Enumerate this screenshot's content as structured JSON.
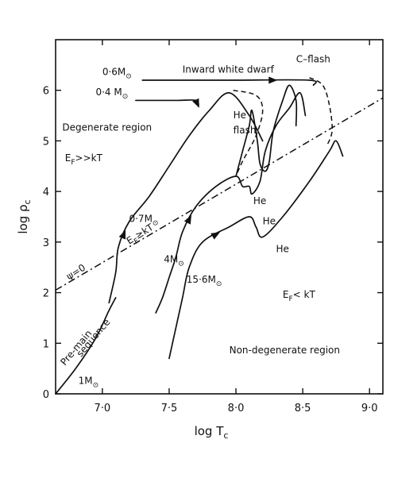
{
  "chart_data": {
    "type": "line",
    "xlabel_main": "log T",
    "xlabel_sub": "c",
    "ylabel_main": "log ρ",
    "ylabel_sub": "c",
    "xlim": [
      6.65,
      9.1
    ],
    "ylim": [
      0,
      7
    ],
    "x_ticks": [
      {
        "v": 7.0,
        "label": "7·0"
      },
      {
        "v": 7.5,
        "label": "7·5"
      },
      {
        "v": 8.0,
        "label": "8·0"
      },
      {
        "v": 8.5,
        "label": "8·5"
      },
      {
        "v": 9.0,
        "label": "9·0"
      }
    ],
    "y_ticks": [
      {
        "v": 0,
        "label": "0"
      },
      {
        "v": 1,
        "label": "1"
      },
      {
        "v": 2,
        "label": "2"
      },
      {
        "v": 3,
        "label": "3"
      },
      {
        "v": 4,
        "label": "4"
      },
      {
        "v": 5,
        "label": "5"
      },
      {
        "v": 6,
        "label": "6"
      }
    ],
    "tracks": [
      {
        "id": "track-1msun",
        "style": "solid",
        "arrow_at": null,
        "points": [
          [
            6.65,
            0.0
          ],
          [
            6.8,
            0.5
          ],
          [
            6.95,
            1.1
          ],
          [
            7.05,
            1.65
          ],
          [
            7.1,
            1.9
          ]
        ]
      },
      {
        "id": "track-0-7msun",
        "style": "solid",
        "arrow_at": 2,
        "points": [
          [
            7.05,
            1.8
          ],
          [
            7.1,
            2.4
          ],
          [
            7.12,
            2.9
          ],
          [
            7.2,
            3.4
          ],
          [
            7.35,
            3.9
          ],
          [
            7.5,
            4.5
          ],
          [
            7.65,
            5.1
          ],
          [
            7.8,
            5.6
          ],
          [
            7.95,
            5.95
          ],
          [
            8.1,
            5.5
          ],
          [
            8.2,
            5.0
          ]
        ]
      },
      {
        "id": "track-0-4msun",
        "style": "solid",
        "arrow_at": 2,
        "points": [
          [
            7.25,
            5.8
          ],
          [
            7.55,
            5.8
          ],
          [
            7.7,
            5.8
          ],
          [
            7.72,
            5.68
          ]
        ]
      },
      {
        "id": "track-0-6msun",
        "style": "solid",
        "arrow_at": 2,
        "points": [
          [
            7.3,
            6.2
          ],
          [
            7.6,
            6.2
          ],
          [
            8.0,
            6.2
          ],
          [
            8.55,
            6.2
          ],
          [
            8.58,
            6.1
          ]
        ]
      },
      {
        "id": "track-4msun",
        "style": "solid",
        "arrow_at": 4,
        "points": [
          [
            7.4,
            1.6
          ],
          [
            7.45,
            1.9
          ],
          [
            7.5,
            2.3
          ],
          [
            7.55,
            2.7
          ],
          [
            7.6,
            3.2
          ],
          [
            7.7,
            3.7
          ],
          [
            7.85,
            4.1
          ],
          [
            8.0,
            4.3
          ],
          [
            8.05,
            4.1
          ],
          [
            8.1,
            4.1
          ],
          [
            8.12,
            3.95
          ],
          [
            8.18,
            4.2
          ],
          [
            8.22,
            4.8
          ],
          [
            8.3,
            5.3
          ],
          [
            8.4,
            5.65
          ],
          [
            8.48,
            5.95
          ],
          [
            8.52,
            5.5
          ]
        ]
      },
      {
        "id": "track-15-6msun",
        "style": "solid",
        "arrow_at": 4,
        "points": [
          [
            7.5,
            0.7
          ],
          [
            7.55,
            1.3
          ],
          [
            7.6,
            1.9
          ],
          [
            7.65,
            2.5
          ],
          [
            7.75,
            3.0
          ],
          [
            7.95,
            3.3
          ],
          [
            8.1,
            3.5
          ],
          [
            8.15,
            3.3
          ],
          [
            8.2,
            3.1
          ],
          [
            8.35,
            3.5
          ],
          [
            8.55,
            4.2
          ],
          [
            8.7,
            4.8
          ],
          [
            8.75,
            5.0
          ],
          [
            8.8,
            4.7
          ]
        ]
      },
      {
        "id": "track-upper-he",
        "style": "solid",
        "arrow_at": null,
        "points": [
          [
            8.0,
            4.3
          ],
          [
            8.05,
            4.8
          ],
          [
            8.1,
            5.3
          ],
          [
            8.12,
            5.6
          ],
          [
            8.16,
            5.0
          ],
          [
            8.18,
            4.55
          ],
          [
            8.22,
            4.4
          ],
          [
            8.25,
            4.6
          ],
          [
            8.28,
            5.2
          ],
          [
            8.35,
            5.8
          ],
          [
            8.4,
            6.1
          ],
          [
            8.45,
            5.8
          ],
          [
            8.45,
            5.3
          ]
        ]
      },
      {
        "id": "he-flash-dashed",
        "style": "dashed",
        "arrow_at": null,
        "points": [
          [
            7.98,
            6.0
          ],
          [
            8.15,
            5.9
          ],
          [
            8.2,
            5.6
          ],
          [
            8.15,
            5.1
          ],
          [
            8.05,
            4.6
          ],
          [
            8.0,
            4.3
          ]
        ]
      },
      {
        "id": "c-flash-dashed",
        "style": "dashed",
        "arrow_at": null,
        "points": [
          [
            8.55,
            6.25
          ],
          [
            8.65,
            6.1
          ],
          [
            8.7,
            5.7
          ],
          [
            8.72,
            5.2
          ],
          [
            8.68,
            4.9
          ]
        ]
      },
      {
        "id": "degeneracy-boundary",
        "style": "dashdot",
        "arrow_at": null,
        "points": [
          [
            6.65,
            2.05
          ],
          [
            9.1,
            5.85
          ]
        ]
      }
    ],
    "annotations": [
      {
        "id": "label-0-6msun",
        "x": 7.0,
        "y": 6.3,
        "main": "0·6M",
        "sub": "⊙"
      },
      {
        "id": "label-inward-white-dwarf",
        "x": 7.6,
        "y": 6.35,
        "main": "Inward white dwarf",
        "sub": ""
      },
      {
        "id": "label-c-flash",
        "x": 8.45,
        "y": 6.55,
        "main": "C–flash",
        "sub": ""
      },
      {
        "id": "label-0-4msun",
        "x": 6.95,
        "y": 5.9,
        "main": "0·4 M",
        "sub": "⊙"
      },
      {
        "id": "label-he-flash-1",
        "x": 7.98,
        "y": 5.45,
        "main": "He",
        "sub": ""
      },
      {
        "id": "label-he-flash-2",
        "x": 7.98,
        "y": 5.15,
        "main": "flash",
        "sub": ""
      },
      {
        "id": "label-degenerate-region",
        "x": 6.7,
        "y": 5.2,
        "main": "Degenerate region",
        "sub": ""
      },
      {
        "id": "label-ef-gg-kt",
        "x": 6.72,
        "y": 4.6,
        "main": "E",
        "sub": "F",
        "tail": ">>kT"
      },
      {
        "id": "label-0-7msun",
        "x": 7.2,
        "y": 3.4,
        "main": "0·7M",
        "sub": "⊙"
      },
      {
        "id": "label-ef-ge-kt",
        "x": 7.2,
        "y": 2.95,
        "main": "E",
        "sub": "F",
        "tail": "≥kT",
        "rotate": -32
      },
      {
        "id": "label-4msun",
        "x": 7.46,
        "y": 2.6,
        "main": "4M",
        "sub": "⊙"
      },
      {
        "id": "label-he-a",
        "x": 8.13,
        "y": 3.75,
        "main": "He",
        "sub": ""
      },
      {
        "id": "label-he-b",
        "x": 8.2,
        "y": 3.35,
        "main": "He",
        "sub": ""
      },
      {
        "id": "label-he-c",
        "x": 8.3,
        "y": 2.8,
        "main": "He",
        "sub": ""
      },
      {
        "id": "label-psi-0",
        "x": 6.75,
        "y": 2.25,
        "main": "ψ=0",
        "sub": "",
        "rotate": -32
      },
      {
        "id": "label-15-6msun",
        "x": 7.63,
        "y": 2.2,
        "main": "15·6M",
        "sub": "⊙"
      },
      {
        "id": "label-ef-lt-kt",
        "x": 8.35,
        "y": 1.9,
        "main": "E",
        "sub": "F",
        "tail": "< kT"
      },
      {
        "id": "label-pre-main",
        "x": 6.72,
        "y": 0.55,
        "main": "Pre-main",
        "sub": "",
        "rotate": -50
      },
      {
        "id": "label-sequence",
        "x": 6.84,
        "y": 0.72,
        "main": "sequence",
        "sub": "",
        "rotate": -50
      },
      {
        "id": "label-1msun",
        "x": 6.82,
        "y": 0.2,
        "main": "1M",
        "sub": "⊙"
      },
      {
        "id": "label-non-degenerate-region",
        "x": 7.95,
        "y": 0.8,
        "main": "Non-degenerate region",
        "sub": ""
      }
    ]
  }
}
